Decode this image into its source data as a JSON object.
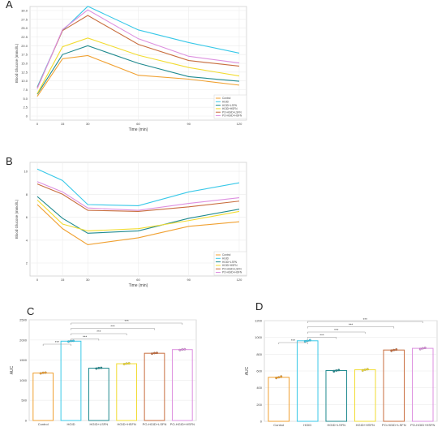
{
  "panels": {
    "a": "A",
    "b": "B",
    "c": "C",
    "d": "D"
  },
  "significance": "***",
  "chart_data": [
    {
      "type": "line",
      "x": [
        0,
        15,
        30,
        60,
        90,
        120
      ],
      "xlabel": "Time (min)",
      "ylabel": "Blood Glucose (mmol/L)",
      "ylim": [
        0,
        30
      ],
      "yticks": [
        0,
        2.5,
        5.0,
        7.5,
        10.0,
        12.5,
        15.0,
        17.5,
        20.0,
        22.5,
        25.0,
        27.5,
        30.0
      ],
      "ytick_labels": [
        "0",
        "2.5",
        "5.0",
        "7.5",
        "10.0",
        "12.5",
        "15.0",
        "17.5",
        "20.0",
        "22.5",
        "25.0",
        "27.5",
        "30.0"
      ],
      "grid": true,
      "legend": "bottom-right",
      "series": [
        {
          "name": "Control",
          "color": "#f0a030",
          "values": [
            5.6,
            16.3,
            17.2,
            11.6,
            10.5,
            8.8
          ]
        },
        {
          "name": "HGID",
          "color": "#38c8e8",
          "values": [
            8.3,
            24.3,
            31.2,
            24.5,
            20.9,
            17.9
          ]
        },
        {
          "name": "HGID+LSFN",
          "color": "#1f8a8f",
          "values": [
            6.2,
            17.5,
            20.0,
            15.0,
            11.2,
            9.9
          ]
        },
        {
          "name": "HGID+HSFN",
          "color": "#f2dc30",
          "values": [
            6.4,
            19.7,
            22.2,
            17.3,
            13.8,
            11.4
          ]
        },
        {
          "name": "PO-HGID+LSFN",
          "color": "#c86d3e",
          "values": [
            8.0,
            24.3,
            28.6,
            20.4,
            15.8,
            14.2
          ]
        },
        {
          "name": "PO-HGID+HSFN",
          "color": "#dd90e0",
          "values": [
            7.8,
            24.6,
            30.2,
            22.0,
            17.0,
            15.1
          ]
        }
      ]
    },
    {
      "type": "line",
      "x": [
        0,
        15,
        30,
        60,
        90,
        120
      ],
      "xlabel": "Time (min)",
      "ylabel": "Blood Glucose (mmol/L)",
      "ylim": [
        2,
        10.5
      ],
      "yticks": [
        2,
        4,
        6,
        8,
        10
      ],
      "ytick_labels": [
        "2",
        "4",
        "6",
        "8",
        "10"
      ],
      "grid": true,
      "legend": "bottom-right",
      "series": [
        {
          "name": "Control",
          "color": "#f0a030",
          "values": [
            7.1,
            5.0,
            3.6,
            4.2,
            5.2,
            5.6
          ]
        },
        {
          "name": "HGID",
          "color": "#38c8e8",
          "values": [
            10.2,
            9.2,
            7.1,
            7.0,
            8.2,
            9.0
          ]
        },
        {
          "name": "HGID+LSFN",
          "color": "#1f8a8f",
          "values": [
            7.8,
            5.9,
            4.6,
            4.8,
            5.9,
            6.7
          ]
        },
        {
          "name": "HGID+HSFN",
          "color": "#f2dc30",
          "values": [
            7.5,
            5.4,
            4.8,
            5.0,
            5.7,
            6.5
          ]
        },
        {
          "name": "PO-HGID+LSFN",
          "color": "#c86d3e",
          "values": [
            8.9,
            8.0,
            6.6,
            6.5,
            6.9,
            7.4
          ]
        },
        {
          "name": "PO-HGID+HSFN",
          "color": "#dd90e0",
          "values": [
            9.1,
            8.2,
            6.8,
            6.6,
            7.2,
            7.7
          ]
        }
      ]
    },
    {
      "type": "bar",
      "categories": [
        "Control",
        "HGID",
        "HGID+LSFN",
        "HGID+HSFN",
        "PO-HGID+LSFN",
        "PO-HGID+HSFN"
      ],
      "colors": [
        "#f0a030",
        "#38c8e8",
        "#1f8a8f",
        "#f2dc30",
        "#c86d3e",
        "#dd90e0"
      ],
      "values": [
        1180,
        1970,
        1300,
        1410,
        1670,
        1760
      ],
      "points": [
        [
          1170,
          1185,
          1190
        ],
        [
          1960,
          1975,
          1980
        ],
        [
          1290,
          1305,
          1310
        ],
        [
          1400,
          1415,
          1420
        ],
        [
          1660,
          1675,
          1680
        ],
        [
          1750,
          1765,
          1770
        ]
      ],
      "ylabel": "AUC",
      "ylim": [
        0,
        2500
      ],
      "yticks": [
        0,
        500,
        1000,
        1500,
        2000,
        2500
      ],
      "ytick_labels": [
        "0",
        "500",
        "1000",
        "1500",
        "2000",
        "2500"
      ],
      "grid": true,
      "brackets": [
        {
          "from": 0,
          "to": 1,
          "label": "***"
        },
        {
          "from": 1,
          "to": 2,
          "label": "***"
        },
        {
          "from": 1,
          "to": 3,
          "label": "***"
        },
        {
          "from": 1,
          "to": 4,
          "label": "***"
        },
        {
          "from": 1,
          "to": 5,
          "label": "***"
        }
      ]
    },
    {
      "type": "bar",
      "categories": [
        "Control",
        "HGID",
        "HGID+LSFN",
        "HGID+HSFN",
        "PO-HGID+LSFN",
        "PO-HGID+HSFN"
      ],
      "colors": [
        "#f0a030",
        "#38c8e8",
        "#1f8a8f",
        "#f2dc30",
        "#c86d3e",
        "#dd90e0"
      ],
      "values": [
        525,
        960,
        605,
        615,
        850,
        870
      ],
      "points": [
        [
          515,
          525,
          535
        ],
        [
          950,
          960,
          968
        ],
        [
          595,
          605,
          612
        ],
        [
          605,
          615,
          622
        ],
        [
          840,
          850,
          857
        ],
        [
          860,
          870,
          876
        ]
      ],
      "ylabel": "AUC",
      "ylim": [
        0,
        1200
      ],
      "yticks": [
        0,
        200,
        400,
        600,
        800,
        1000,
        1200
      ],
      "ytick_labels": [
        "0",
        "200",
        "400",
        "600",
        "800",
        "1000",
        "1200"
      ],
      "grid": true,
      "brackets": [
        {
          "from": 0,
          "to": 1,
          "label": "***"
        },
        {
          "from": 1,
          "to": 2,
          "label": "***"
        },
        {
          "from": 1,
          "to": 3,
          "label": "***"
        },
        {
          "from": 1,
          "to": 4,
          "label": "***"
        },
        {
          "from": 1,
          "to": 5,
          "label": "***"
        }
      ]
    }
  ]
}
